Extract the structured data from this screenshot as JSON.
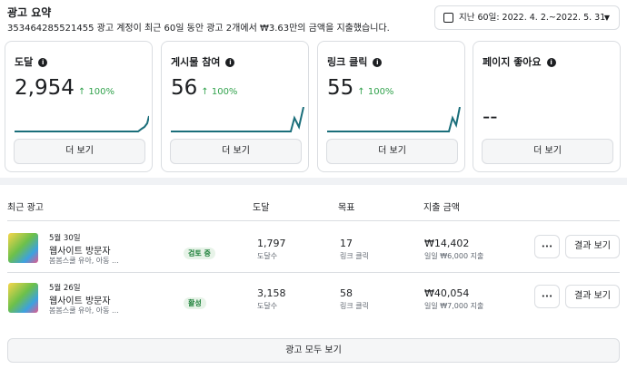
{
  "header": {
    "title": "광고 요약",
    "subtitle": "353464285521455 광고 계정이 최근 60일 동안 광고 2개에서 ₩3.63만의 금액을 지출했습니다.",
    "date_picker": "지난 60일: 2022. 4. 2.~2022. 5. 31."
  },
  "cards": [
    {
      "label": "도달",
      "value": "2,954",
      "change": "↑ 100%",
      "button": "더 보기"
    },
    {
      "label": "게시물 참여",
      "value": "56",
      "change": "↑ 100%",
      "button": "더 보기"
    },
    {
      "label": "링크 클릭",
      "value": "55",
      "change": "↑ 100%",
      "button": "더 보기"
    },
    {
      "label": "페이지 좋아요",
      "value": "--",
      "button": "더 보기"
    }
  ],
  "table": {
    "headers": [
      "최근 광고",
      "도달",
      "목표",
      "지출 금액"
    ],
    "rows": [
      {
        "date": "5월 30일",
        "name": "웹사이트 방문자",
        "desc": "봄봄스쿨 유아, 아동 ...",
        "status": "검토 중",
        "reach": "1,797",
        "reach_label": "도달수",
        "goal": "17",
        "goal_label": "링크 클릭",
        "spend": "₩14,402",
        "budget": "일일 ₩6,000 지출",
        "more": "•••",
        "button": "결과 보기"
      },
      {
        "date": "5월 26일",
        "name": "웹사이트 방문자",
        "desc": "봄봄스쿨 유아, 아동 ...",
        "status": "활성",
        "reach": "3,158",
        "reach_label": "도달수",
        "goal": "58",
        "goal_label": "링크 클릭",
        "spend": "₩40,054",
        "budget": "일일 ₩7,000 지출",
        "more": "•••",
        "button": "결과 보기"
      }
    ],
    "footer_button": "광고 모두 보기"
  }
}
